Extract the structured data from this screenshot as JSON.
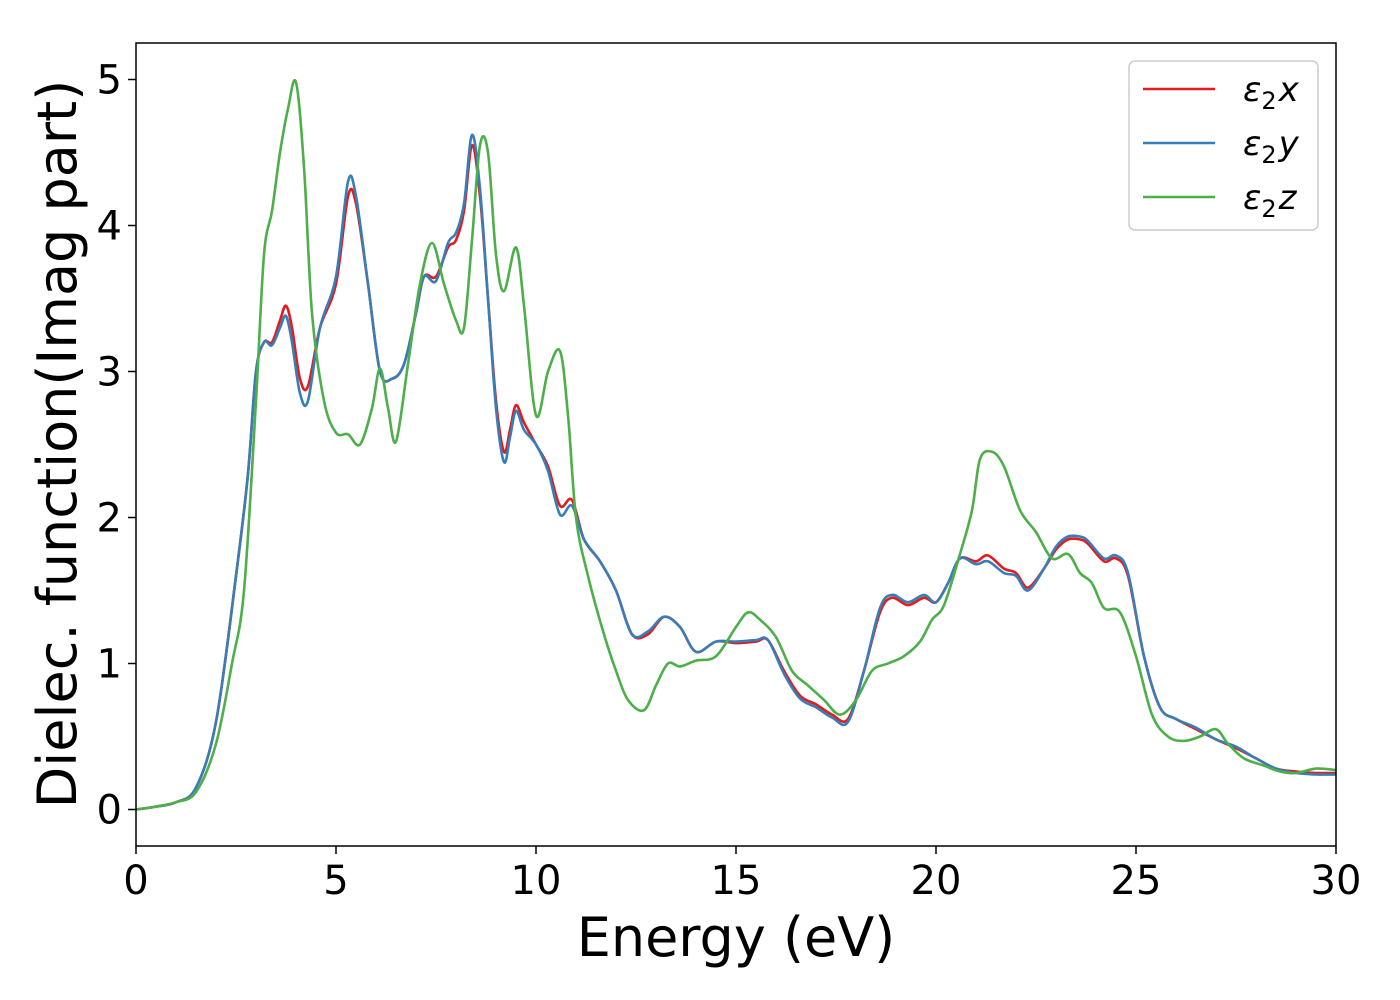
{
  "chart_data": {
    "type": "line",
    "title": "",
    "xlabel": "Energy (eV)",
    "ylabel": "Dielec. function(Imag part)",
    "xlim": [
      0,
      30
    ],
    "ylim": [
      -0.25,
      5.25
    ],
    "xticks": [
      0,
      5,
      10,
      15,
      20,
      25,
      30
    ],
    "yticks": [
      0,
      1,
      2,
      3,
      4,
      5
    ],
    "grid": false,
    "legend_position": "top-right",
    "series": [
      {
        "name": "ε2x",
        "legend_main": "ε",
        "legend_sub": "2",
        "legend_tail": "x",
        "color": "#e41a1c",
        "points": [
          [
            0,
            0
          ],
          [
            0.5,
            0.02
          ],
          [
            1,
            0.05
          ],
          [
            1.5,
            0.15
          ],
          [
            2,
            0.6
          ],
          [
            2.5,
            1.6
          ],
          [
            2.8,
            2.3
          ],
          [
            3.0,
            3.0
          ],
          [
            3.2,
            3.2
          ],
          [
            3.4,
            3.2
          ],
          [
            3.6,
            3.35
          ],
          [
            3.75,
            3.45
          ],
          [
            3.9,
            3.3
          ],
          [
            4.1,
            2.95
          ],
          [
            4.3,
            2.9
          ],
          [
            4.6,
            3.3
          ],
          [
            5.0,
            3.6
          ],
          [
            5.3,
            4.2
          ],
          [
            5.5,
            4.15
          ],
          [
            5.8,
            3.6
          ],
          [
            6.1,
            3.0
          ],
          [
            6.4,
            2.95
          ],
          [
            6.7,
            3.05
          ],
          [
            7.0,
            3.4
          ],
          [
            7.2,
            3.65
          ],
          [
            7.5,
            3.65
          ],
          [
            7.8,
            3.85
          ],
          [
            8.0,
            3.9
          ],
          [
            8.2,
            4.1
          ],
          [
            8.4,
            4.55
          ],
          [
            8.6,
            4.2
          ],
          [
            8.8,
            3.5
          ],
          [
            9.0,
            2.8
          ],
          [
            9.2,
            2.45
          ],
          [
            9.35,
            2.6
          ],
          [
            9.5,
            2.77
          ],
          [
            9.7,
            2.65
          ],
          [
            10.0,
            2.5
          ],
          [
            10.3,
            2.35
          ],
          [
            10.6,
            2.08
          ],
          [
            10.9,
            2.12
          ],
          [
            11.2,
            1.85
          ],
          [
            11.6,
            1.7
          ],
          [
            12.0,
            1.5
          ],
          [
            12.4,
            1.2
          ],
          [
            12.8,
            1.2
          ],
          [
            13.2,
            1.32
          ],
          [
            13.6,
            1.25
          ],
          [
            14.0,
            1.08
          ],
          [
            14.5,
            1.15
          ],
          [
            15.0,
            1.14
          ],
          [
            15.5,
            1.15
          ],
          [
            15.8,
            1.16
          ],
          [
            16.2,
            0.95
          ],
          [
            16.6,
            0.78
          ],
          [
            17.0,
            0.72
          ],
          [
            17.4,
            0.65
          ],
          [
            17.8,
            0.62
          ],
          [
            18.2,
            0.95
          ],
          [
            18.6,
            1.35
          ],
          [
            18.9,
            1.45
          ],
          [
            19.3,
            1.4
          ],
          [
            19.7,
            1.45
          ],
          [
            20.0,
            1.42
          ],
          [
            20.3,
            1.55
          ],
          [
            20.6,
            1.72
          ],
          [
            21.0,
            1.7
          ],
          [
            21.3,
            1.74
          ],
          [
            21.7,
            1.65
          ],
          [
            22.0,
            1.62
          ],
          [
            22.3,
            1.52
          ],
          [
            22.7,
            1.65
          ],
          [
            23.0,
            1.78
          ],
          [
            23.3,
            1.85
          ],
          [
            23.6,
            1.85
          ],
          [
            23.8,
            1.82
          ],
          [
            24.2,
            1.7
          ],
          [
            24.5,
            1.72
          ],
          [
            24.8,
            1.6
          ],
          [
            25.2,
            1.05
          ],
          [
            25.6,
            0.7
          ],
          [
            26.0,
            0.62
          ],
          [
            26.5,
            0.55
          ],
          [
            27.0,
            0.48
          ],
          [
            27.5,
            0.42
          ],
          [
            28.0,
            0.35
          ],
          [
            28.5,
            0.28
          ],
          [
            29.0,
            0.26
          ],
          [
            29.5,
            0.25
          ],
          [
            30.0,
            0.25
          ]
        ]
      },
      {
        "name": "ε2y",
        "legend_main": "ε",
        "legend_sub": "2",
        "legend_tail": "y",
        "color": "#377eb8",
        "points": [
          [
            0,
            0
          ],
          [
            0.5,
            0.02
          ],
          [
            1,
            0.05
          ],
          [
            1.5,
            0.15
          ],
          [
            2,
            0.6
          ],
          [
            2.5,
            1.6
          ],
          [
            2.8,
            2.3
          ],
          [
            3.0,
            3.0
          ],
          [
            3.2,
            3.2
          ],
          [
            3.4,
            3.18
          ],
          [
            3.6,
            3.3
          ],
          [
            3.75,
            3.38
          ],
          [
            3.9,
            3.2
          ],
          [
            4.1,
            2.85
          ],
          [
            4.3,
            2.8
          ],
          [
            4.6,
            3.3
          ],
          [
            5.0,
            3.65
          ],
          [
            5.3,
            4.3
          ],
          [
            5.5,
            4.2
          ],
          [
            5.8,
            3.6
          ],
          [
            6.1,
            3.0
          ],
          [
            6.4,
            2.95
          ],
          [
            6.7,
            3.05
          ],
          [
            7.0,
            3.4
          ],
          [
            7.2,
            3.65
          ],
          [
            7.5,
            3.62
          ],
          [
            7.8,
            3.88
          ],
          [
            8.0,
            3.95
          ],
          [
            8.2,
            4.15
          ],
          [
            8.4,
            4.62
          ],
          [
            8.6,
            4.25
          ],
          [
            8.8,
            3.5
          ],
          [
            9.0,
            2.75
          ],
          [
            9.2,
            2.38
          ],
          [
            9.35,
            2.55
          ],
          [
            9.5,
            2.73
          ],
          [
            9.7,
            2.6
          ],
          [
            10.0,
            2.5
          ],
          [
            10.3,
            2.32
          ],
          [
            10.6,
            2.02
          ],
          [
            10.9,
            2.08
          ],
          [
            11.2,
            1.85
          ],
          [
            11.6,
            1.7
          ],
          [
            12.0,
            1.5
          ],
          [
            12.4,
            1.2
          ],
          [
            12.8,
            1.22
          ],
          [
            13.2,
            1.32
          ],
          [
            13.6,
            1.25
          ],
          [
            14.0,
            1.08
          ],
          [
            14.5,
            1.15
          ],
          [
            15.0,
            1.15
          ],
          [
            15.5,
            1.16
          ],
          [
            15.8,
            1.16
          ],
          [
            16.2,
            0.93
          ],
          [
            16.6,
            0.76
          ],
          [
            17.0,
            0.7
          ],
          [
            17.4,
            0.63
          ],
          [
            17.8,
            0.6
          ],
          [
            18.2,
            0.95
          ],
          [
            18.6,
            1.38
          ],
          [
            18.9,
            1.47
          ],
          [
            19.3,
            1.42
          ],
          [
            19.7,
            1.47
          ],
          [
            20.0,
            1.42
          ],
          [
            20.3,
            1.55
          ],
          [
            20.6,
            1.72
          ],
          [
            21.0,
            1.68
          ],
          [
            21.3,
            1.7
          ],
          [
            21.7,
            1.62
          ],
          [
            22.0,
            1.6
          ],
          [
            22.3,
            1.5
          ],
          [
            22.7,
            1.65
          ],
          [
            23.0,
            1.8
          ],
          [
            23.3,
            1.87
          ],
          [
            23.6,
            1.87
          ],
          [
            23.8,
            1.84
          ],
          [
            24.2,
            1.72
          ],
          [
            24.5,
            1.74
          ],
          [
            24.8,
            1.62
          ],
          [
            25.2,
            1.05
          ],
          [
            25.6,
            0.7
          ],
          [
            26.0,
            0.62
          ],
          [
            26.5,
            0.56
          ],
          [
            27.0,
            0.48
          ],
          [
            27.5,
            0.43
          ],
          [
            28.0,
            0.35
          ],
          [
            28.5,
            0.28
          ],
          [
            29.0,
            0.25
          ],
          [
            29.5,
            0.24
          ],
          [
            30.0,
            0.24
          ]
        ]
      },
      {
        "name": "ε2z",
        "legend_main": "ε",
        "legend_sub": "2",
        "legend_tail": "z",
        "color": "#4daf4a",
        "points": [
          [
            0,
            0
          ],
          [
            0.5,
            0.02
          ],
          [
            1,
            0.05
          ],
          [
            1.5,
            0.12
          ],
          [
            2,
            0.45
          ],
          [
            2.4,
            1.0
          ],
          [
            2.7,
            1.5
          ],
          [
            3.0,
            2.8
          ],
          [
            3.2,
            3.8
          ],
          [
            3.4,
            4.1
          ],
          [
            3.6,
            4.5
          ],
          [
            3.8,
            4.8
          ],
          [
            4.0,
            4.98
          ],
          [
            4.2,
            4.4
          ],
          [
            4.4,
            3.4
          ],
          [
            4.7,
            2.8
          ],
          [
            5.0,
            2.58
          ],
          [
            5.3,
            2.57
          ],
          [
            5.6,
            2.5
          ],
          [
            5.9,
            2.75
          ],
          [
            6.1,
            3.02
          ],
          [
            6.3,
            2.75
          ],
          [
            6.5,
            2.52
          ],
          [
            6.8,
            3.05
          ],
          [
            7.1,
            3.6
          ],
          [
            7.4,
            3.88
          ],
          [
            7.7,
            3.6
          ],
          [
            8.0,
            3.35
          ],
          [
            8.2,
            3.3
          ],
          [
            8.4,
            3.9
          ],
          [
            8.6,
            4.55
          ],
          [
            8.8,
            4.5
          ],
          [
            9.0,
            3.8
          ],
          [
            9.2,
            3.55
          ],
          [
            9.5,
            3.85
          ],
          [
            9.7,
            3.45
          ],
          [
            10.0,
            2.7
          ],
          [
            10.3,
            3.0
          ],
          [
            10.6,
            3.14
          ],
          [
            10.8,
            2.7
          ],
          [
            11.0,
            2.0
          ],
          [
            11.3,
            1.6
          ],
          [
            11.7,
            1.2
          ],
          [
            12.0,
            0.95
          ],
          [
            12.3,
            0.75
          ],
          [
            12.7,
            0.68
          ],
          [
            13.0,
            0.85
          ],
          [
            13.3,
            1.0
          ],
          [
            13.6,
            0.98
          ],
          [
            14.0,
            1.02
          ],
          [
            14.5,
            1.05
          ],
          [
            15.0,
            1.25
          ],
          [
            15.3,
            1.35
          ],
          [
            15.6,
            1.3
          ],
          [
            16.0,
            1.18
          ],
          [
            16.4,
            0.95
          ],
          [
            16.8,
            0.85
          ],
          [
            17.2,
            0.75
          ],
          [
            17.6,
            0.65
          ],
          [
            18.0,
            0.75
          ],
          [
            18.4,
            0.95
          ],
          [
            18.8,
            1.0
          ],
          [
            19.2,
            1.05
          ],
          [
            19.6,
            1.15
          ],
          [
            19.9,
            1.3
          ],
          [
            20.2,
            1.4
          ],
          [
            20.6,
            1.75
          ],
          [
            20.9,
            2.05
          ],
          [
            21.1,
            2.4
          ],
          [
            21.4,
            2.45
          ],
          [
            21.7,
            2.35
          ],
          [
            22.1,
            2.05
          ],
          [
            22.5,
            1.9
          ],
          [
            22.9,
            1.72
          ],
          [
            23.3,
            1.75
          ],
          [
            23.6,
            1.62
          ],
          [
            23.9,
            1.55
          ],
          [
            24.2,
            1.38
          ],
          [
            24.6,
            1.35
          ],
          [
            25.0,
            1.05
          ],
          [
            25.4,
            0.65
          ],
          [
            25.8,
            0.5
          ],
          [
            26.2,
            0.47
          ],
          [
            26.6,
            0.5
          ],
          [
            27.0,
            0.55
          ],
          [
            27.3,
            0.45
          ],
          [
            27.7,
            0.35
          ],
          [
            28.2,
            0.3
          ],
          [
            28.6,
            0.26
          ],
          [
            29.0,
            0.25
          ],
          [
            29.5,
            0.28
          ],
          [
            30.0,
            0.27
          ]
        ]
      }
    ]
  }
}
